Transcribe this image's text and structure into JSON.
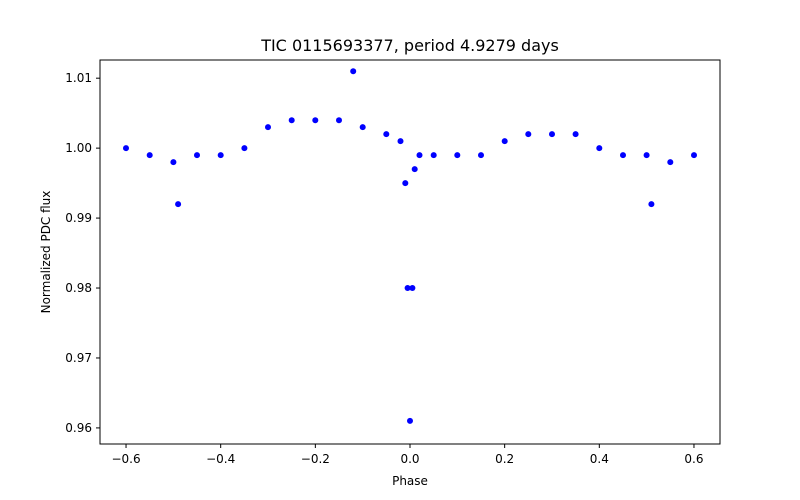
{
  "chart_data": {
    "type": "scatter",
    "title": "TIC 0115693377, period 4.9279 days",
    "xlabel": "Phase",
    "ylabel": "Normalized PDC flux",
    "xlim": [
      -0.655,
      0.655
    ],
    "ylim": [
      0.9577,
      1.0126
    ],
    "xticks": [
      -0.6,
      -0.4,
      -0.2,
      0.0,
      0.2,
      0.4,
      0.6
    ],
    "xtick_labels": [
      "−0.6",
      "−0.4",
      "−0.2",
      "0.0",
      "0.2",
      "0.4",
      "0.6"
    ],
    "yticks": [
      0.96,
      0.97,
      0.98,
      0.99,
      1.0,
      1.01
    ],
    "ytick_labels": [
      "0.96",
      "0.97",
      "0.98",
      "0.99",
      "1.00",
      "1.01"
    ],
    "grid": false,
    "marker_color": "#0000ff",
    "series": [
      {
        "x": [
          -0.6,
          -0.55,
          -0.5,
          -0.49,
          -0.45,
          -0.4,
          -0.35,
          -0.3,
          -0.25,
          -0.2,
          -0.15,
          -0.12,
          -0.1,
          -0.05,
          -0.02,
          -0.01,
          -0.005,
          0.0,
          0.005,
          0.01,
          0.02,
          0.05,
          0.1,
          0.15,
          0.2,
          0.25,
          0.3,
          0.35,
          0.4,
          0.45,
          0.5,
          0.51,
          0.55,
          0.6
        ],
        "y": [
          1.0,
          0.999,
          0.998,
          0.992,
          0.999,
          0.999,
          1.0,
          1.003,
          1.004,
          1.004,
          1.004,
          1.011,
          1.003,
          1.002,
          1.001,
          0.995,
          0.98,
          0.961,
          0.98,
          0.997,
          0.999,
          0.999,
          0.999,
          0.999,
          1.001,
          1.002,
          1.002,
          1.002,
          1.0,
          0.999,
          0.999,
          0.992,
          0.998,
          0.999
        ]
      }
    ]
  }
}
